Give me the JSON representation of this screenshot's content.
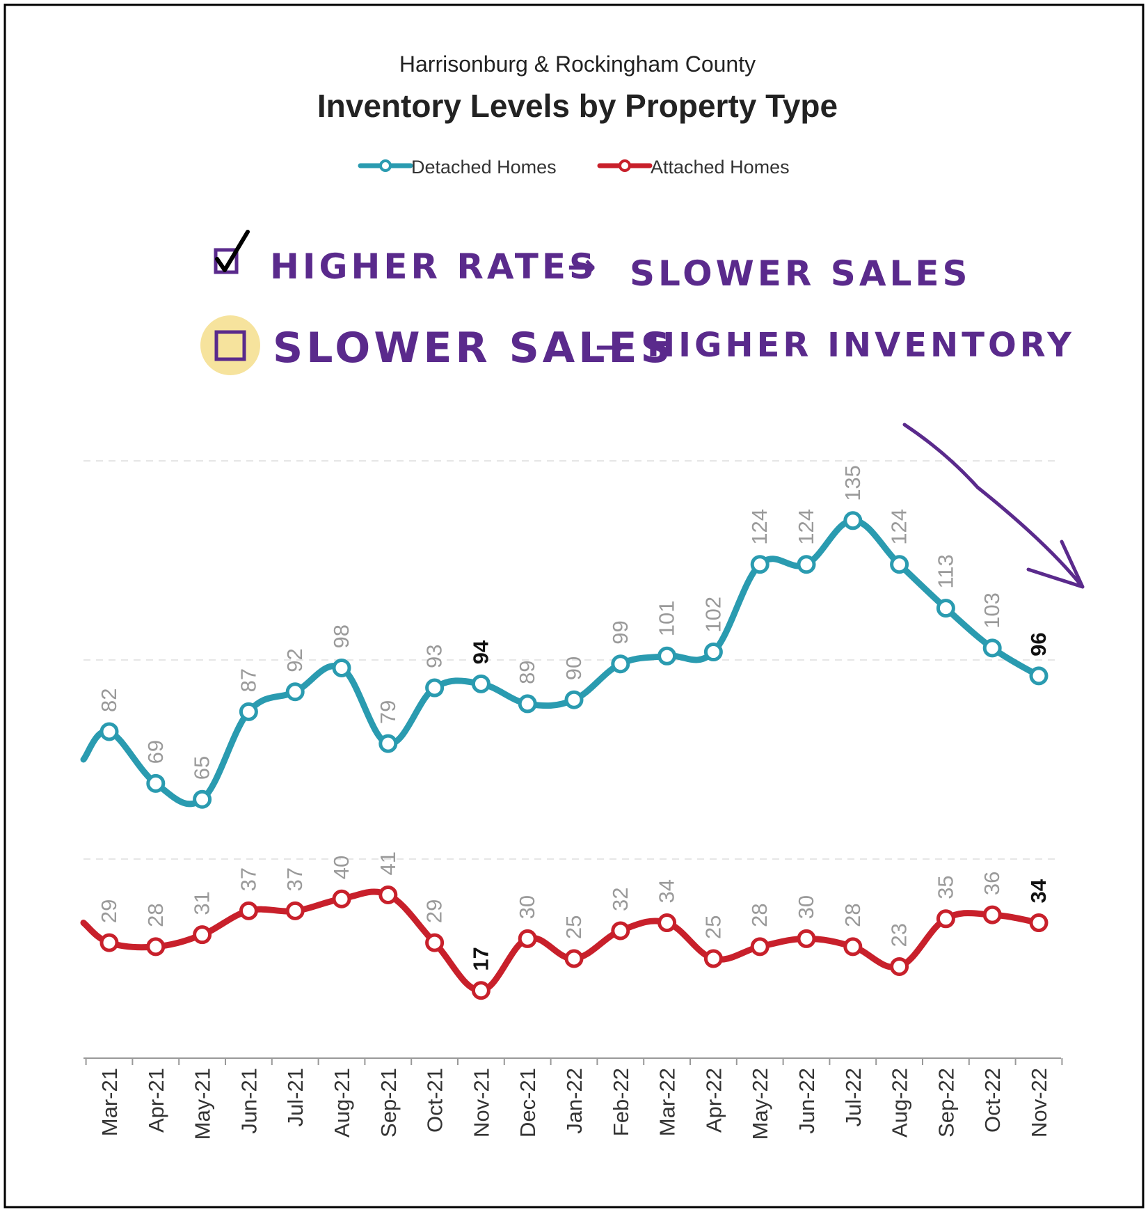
{
  "chart_data": {
    "type": "line",
    "subtitle": "Harrisonburg & Rockingham County",
    "title": "Inventory Levels by Property Type",
    "legend_placement": "top-center",
    "grid": true,
    "x": [
      "Mar-21",
      "Apr-21",
      "May-21",
      "Jun-21",
      "Jul-21",
      "Aug-21",
      "Sep-21",
      "Oct-21",
      "Nov-21",
      "Dec-21",
      "Jan-22",
      "Feb-22",
      "Mar-22",
      "Apr-22",
      "May-22",
      "Jun-22",
      "Jul-22",
      "Aug-22",
      "Sep-22",
      "Oct-22",
      "Nov-22"
    ],
    "series": [
      {
        "name": "Detached Homes",
        "color": "#2a9bb0",
        "values": [
          82,
          69,
          65,
          87,
          92,
          98,
          79,
          93,
          94,
          89,
          90,
          99,
          101,
          102,
          124,
          124,
          135,
          124,
          113,
          103,
          96
        ],
        "lead_in_value": 75,
        "bold_labels": [
          8,
          20
        ]
      },
      {
        "name": "Attached Homes",
        "color": "#c8202b",
        "values": [
          29,
          28,
          31,
          37,
          37,
          40,
          41,
          29,
          17,
          30,
          25,
          32,
          34,
          25,
          28,
          30,
          28,
          23,
          35,
          36,
          34
        ],
        "lead_in_value": 34,
        "bold_labels": [
          8,
          20
        ]
      }
    ],
    "ylim": [
      0,
      200
    ],
    "annotations": {
      "line1_left": "HIGHER RATES",
      "line1_right": "SLOWER SALES",
      "line1_checked": true,
      "line2_left": "SLOWER SALES",
      "line2_right": "HIGHER INVENTORY",
      "line2_checked": false,
      "arrow_glyph": "→",
      "note_color": "#5a2a8c",
      "highlight_color": "#f5de8c"
    }
  }
}
